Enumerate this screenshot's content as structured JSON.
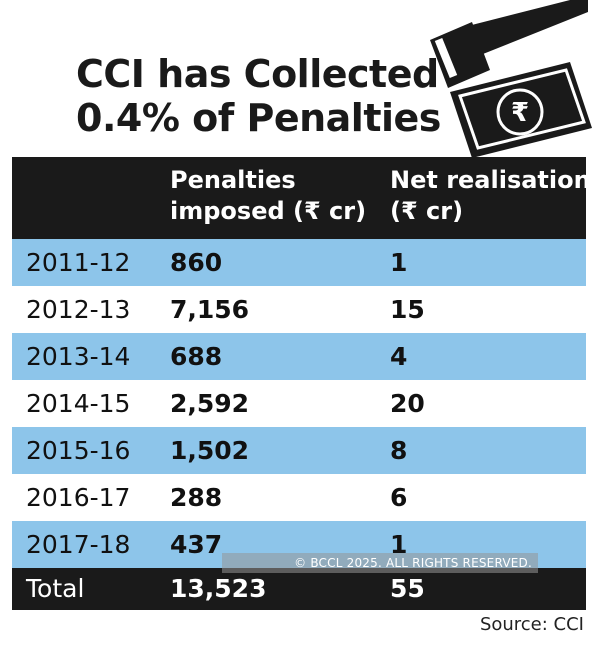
{
  "title": {
    "line1": "CCI has Collected",
    "line2": "0.4% of Penalties"
  },
  "icons": {
    "illustration": "gavel-and-rupee-note-icon",
    "rupee_symbol": "₹"
  },
  "colors": {
    "header_bg": "#1a1a1a",
    "row_highlight": "#8dc5ea",
    "text": "#111111"
  },
  "chart_data": {
    "type": "table",
    "title": "CCI has Collected 0.4% of Penalties",
    "columns": [
      "",
      "Penalties imposed (₹ cr)",
      "Net realisation (₹ cr)"
    ],
    "rows": [
      {
        "year": "2011-12",
        "penalties": "860",
        "realisation": "1"
      },
      {
        "year": "2012-13",
        "penalties": "7,156",
        "realisation": "15"
      },
      {
        "year": "2013-14",
        "penalties": "688",
        "realisation": "4"
      },
      {
        "year": "2014-15",
        "penalties": "2,592",
        "realisation": "20"
      },
      {
        "year": "2015-16",
        "penalties": "1,502",
        "realisation": "8"
      },
      {
        "year": "2016-17",
        "penalties": "288",
        "realisation": "6"
      },
      {
        "year": "2017-18",
        "penalties": "437",
        "realisation": "1"
      }
    ],
    "total": {
      "label": "Total",
      "penalties": "13,523",
      "realisation": "55"
    }
  },
  "header": {
    "col2_line1": "Penalties",
    "col2_line2": "imposed (₹ cr)",
    "col3_line1": "Net realisation",
    "col3_line2": "(₹ cr)"
  },
  "watermark": "© BCCL 2025. ALL RIGHTS RESERVED.",
  "source": "Source: CCI"
}
